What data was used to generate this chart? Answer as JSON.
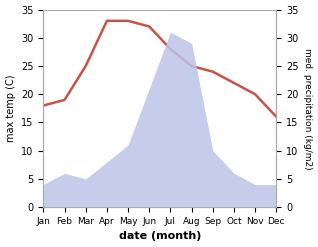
{
  "months": [
    "Jan",
    "Feb",
    "Mar",
    "Apr",
    "May",
    "Jun",
    "Jul",
    "Aug",
    "Sep",
    "Oct",
    "Nov",
    "Dec"
  ],
  "temperature": [
    18,
    19,
    25,
    33,
    33,
    32,
    28,
    25,
    24,
    22,
    20,
    16
  ],
  "precipitation": [
    4,
    6,
    5,
    8,
    11,
    21,
    31,
    29,
    10,
    6,
    4,
    4
  ],
  "temp_color": "#c8524a",
  "precip_fill_color": "#bcc5e8",
  "temp_ylim": [
    0,
    35
  ],
  "precip_ylim": [
    0,
    35
  ],
  "xlabel": "date (month)",
  "ylabel_left": "max temp (C)",
  "ylabel_right": "med. precipitation (kg/m2)",
  "background_color": "#ffffff",
  "tick_color": "#888888",
  "spine_color": "#aaaaaa"
}
